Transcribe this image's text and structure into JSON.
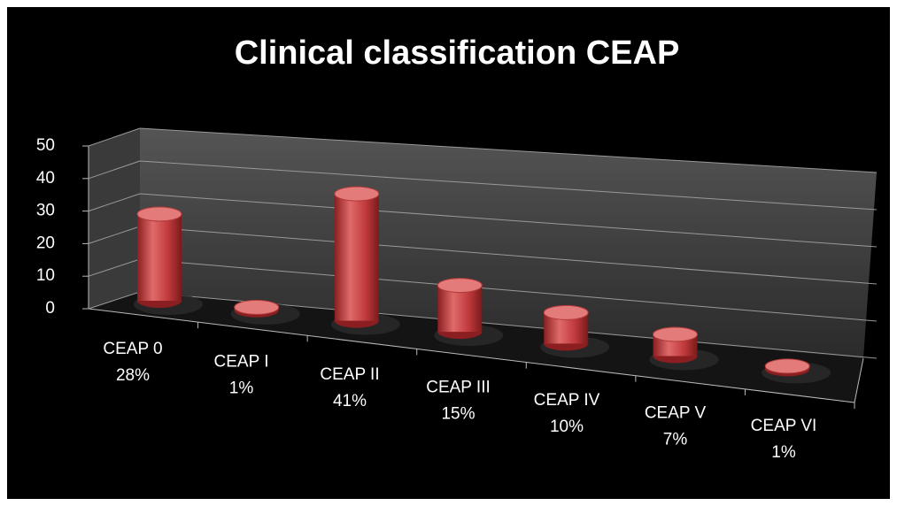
{
  "chart_data": {
    "type": "bar",
    "title": "Clinical classification CEAP",
    "categories": [
      "CEAP 0",
      "CEAP I",
      "CEAP II",
      "CEAP III",
      "CEAP IV",
      "CEAP V",
      "CEAP VI"
    ],
    "values": [
      28,
      1,
      41,
      15,
      10,
      7,
      1
    ],
    "value_labels": [
      "28%",
      "1%",
      "41%",
      "15%",
      "10%",
      "7%",
      "1%"
    ],
    "color": "#c0393b",
    "ylim": [
      0,
      50
    ],
    "yticks": [
      0,
      10,
      20,
      30,
      40,
      50
    ],
    "grid": true
  }
}
